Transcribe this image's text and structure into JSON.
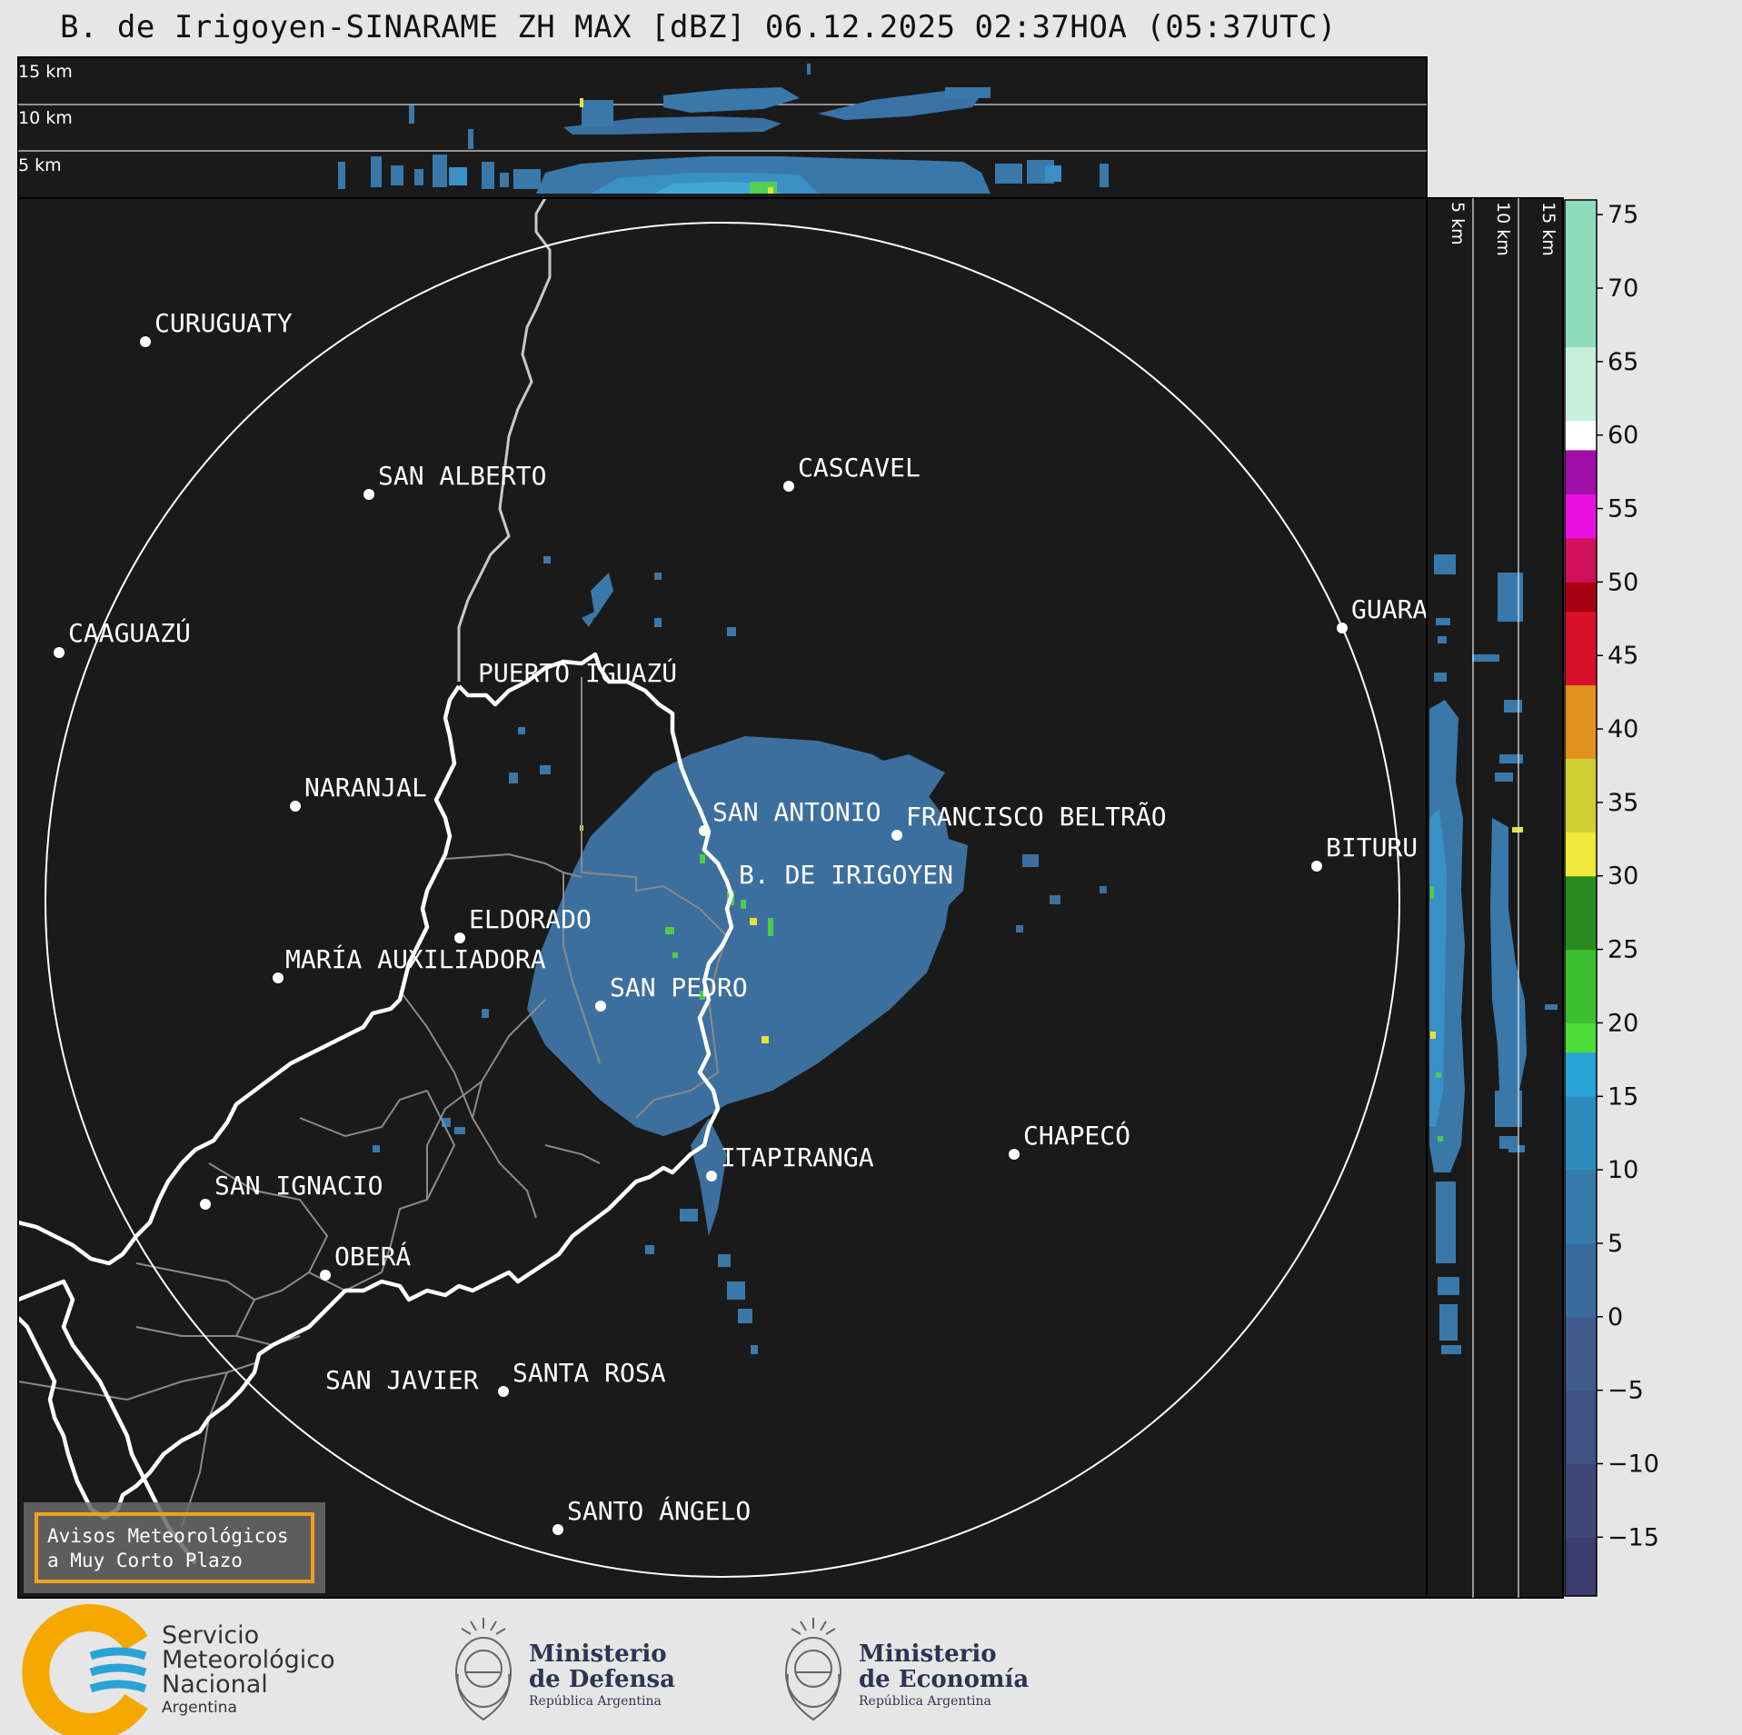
{
  "title": "B. de Irigoyen-SINARAME ZH MAX [dBZ] 06.12.2025 02:37HOA (05:37UTC)",
  "top_profile": {
    "height_labels": [
      "15 km",
      "10 km",
      "5 km"
    ]
  },
  "side_profile": {
    "height_labels": [
      "5 km",
      "10 km",
      "15 km"
    ]
  },
  "colorbar": {
    "unit": "dBZ",
    "ticks": [
      "75",
      "70",
      "65",
      "60",
      "55",
      "50",
      "45",
      "40",
      "35",
      "30",
      "25",
      "20",
      "15",
      "10",
      "5",
      "0",
      "−5",
      "−10",
      "−15"
    ],
    "tick_values": [
      75,
      70,
      65,
      60,
      55,
      50,
      45,
      40,
      35,
      30,
      25,
      20,
      15,
      10,
      5,
      0,
      -5,
      -10,
      -15
    ],
    "range": [
      -19,
      76
    ],
    "bands": [
      {
        "from": -19,
        "to": -15,
        "color": "#3a3d6e"
      },
      {
        "from": -15,
        "to": -10,
        "color": "#3f4878"
      },
      {
        "from": -10,
        "to": -5,
        "color": "#405283"
      },
      {
        "from": -5,
        "to": 0,
        "color": "#3e5b8c"
      },
      {
        "from": 0,
        "to": 5,
        "color": "#3a6a9c"
      },
      {
        "from": 5,
        "to": 10,
        "color": "#357aab"
      },
      {
        "from": 10,
        "to": 15,
        "color": "#2e8bbd"
      },
      {
        "from": 15,
        "to": 18,
        "color": "#2aa3d6"
      },
      {
        "from": 18,
        "to": 20,
        "color": "#4ddc3a"
      },
      {
        "from": 20,
        "to": 25,
        "color": "#3cbf30"
      },
      {
        "from": 25,
        "to": 30,
        "color": "#2a8a22"
      },
      {
        "from": 30,
        "to": 33,
        "color": "#f0e83a"
      },
      {
        "from": 33,
        "to": 38,
        "color": "#cfcf34"
      },
      {
        "from": 38,
        "to": 43,
        "color": "#e0901e"
      },
      {
        "from": 43,
        "to": 48,
        "color": "#d8102a"
      },
      {
        "from": 48,
        "to": 50,
        "color": "#a80010"
      },
      {
        "from": 50,
        "to": 53,
        "color": "#d0105a"
      },
      {
        "from": 53,
        "to": 56,
        "color": "#e810e0"
      },
      {
        "from": 56,
        "to": 59,
        "color": "#a010a8"
      },
      {
        "from": 59,
        "to": 61,
        "color": "#ffffff"
      },
      {
        "from": 61,
        "to": 66,
        "color": "#c6efdc"
      },
      {
        "from": 66,
        "to": 76,
        "color": "#8fdcbc"
      }
    ]
  },
  "cities": [
    {
      "name": "CURUGUATY"
    },
    {
      "name": "SAN ALBERTO"
    },
    {
      "name": "CASCAVEL"
    },
    {
      "name": "CAAGUAZÚ"
    },
    {
      "name": "GUARA"
    },
    {
      "name": "PUERTO IGUAZÚ"
    },
    {
      "name": "NARANJAL"
    },
    {
      "name": "SAN ANTONIO"
    },
    {
      "name": "FRANCISCO BELTRÃO"
    },
    {
      "name": "BITURU"
    },
    {
      "name": "B. DE IRIGOYEN"
    },
    {
      "name": "ELDORADO"
    },
    {
      "name": "MARÍA AUXILIADORA"
    },
    {
      "name": "SAN PEDRO"
    },
    {
      "name": "CHAPECÓ"
    },
    {
      "name": "ITAPIRANGA"
    },
    {
      "name": "SAN IGNACIO"
    },
    {
      "name": "OBERÁ"
    },
    {
      "name": "SAN JAVIER"
    },
    {
      "name": "SANTA ROSA"
    },
    {
      "name": "SANTO ÁNGELO"
    }
  ],
  "alert_box": {
    "line1": "Avisos Meteorológicos",
    "line2": "a Muy Corto Plazo"
  },
  "footer": {
    "smn": {
      "line1": "Servicio",
      "line2": "Meteorológico",
      "line3": "Nacional",
      "line4": "Argentina"
    },
    "defensa": {
      "line1": "Ministerio",
      "line2": "de Defensa",
      "line3": "República Argentina"
    },
    "economia": {
      "line1": "Ministerio",
      "line2": "de Economía",
      "line3": "República Argentina"
    }
  },
  "colors": {
    "map_bg": "#1a1a1a",
    "page_bg": "#e6e6e6",
    "echo_main": "#3d6f9e",
    "echo_light": "#3a8fc4",
    "alert_border": "#f0a020",
    "smn_orange": "#f5a800",
    "smn_blue": "#2aa3d6",
    "ministry_navy": "#2b3553"
  }
}
